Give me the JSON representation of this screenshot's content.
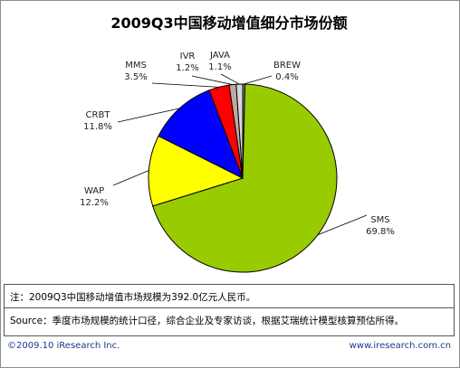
{
  "chart_data": {
    "type": "pie",
    "title": "2009Q3中国移动增值细分市场份额",
    "slices": [
      {
        "name": "SMS",
        "value_label": "69.8%",
        "value": 69.8,
        "color": "#99cc00"
      },
      {
        "name": "WAP",
        "value_label": "12.2%",
        "value": 12.2,
        "color": "#ffff00"
      },
      {
        "name": "CRBT",
        "value_label": "11.8%",
        "value": 11.8,
        "color": "#0000ff"
      },
      {
        "name": "MMS",
        "value_label": "3.5%",
        "value": 3.5,
        "color": "#ff0000"
      },
      {
        "name": "IVR",
        "value_label": "1.2%",
        "value": 1.2,
        "color": "#c0a8a0"
      },
      {
        "name": "JAVA",
        "value_label": "1.1%",
        "value": 1.1,
        "color": "#d8d8d8"
      },
      {
        "name": "BREW",
        "value_label": "0.4%",
        "value": 0.4,
        "color": "#808080"
      }
    ]
  },
  "note": "注：2009Q3中国移动增值市场规模为392.0亿元人民币。",
  "source": "Source：季度市场规模的统计口径，综合企业及专家访谈，根据艾瑞统计模型核算预估所得。",
  "footer": {
    "copyright": "©2009.10 iResearch Inc.",
    "website": "www.iresearch.com.cn"
  }
}
